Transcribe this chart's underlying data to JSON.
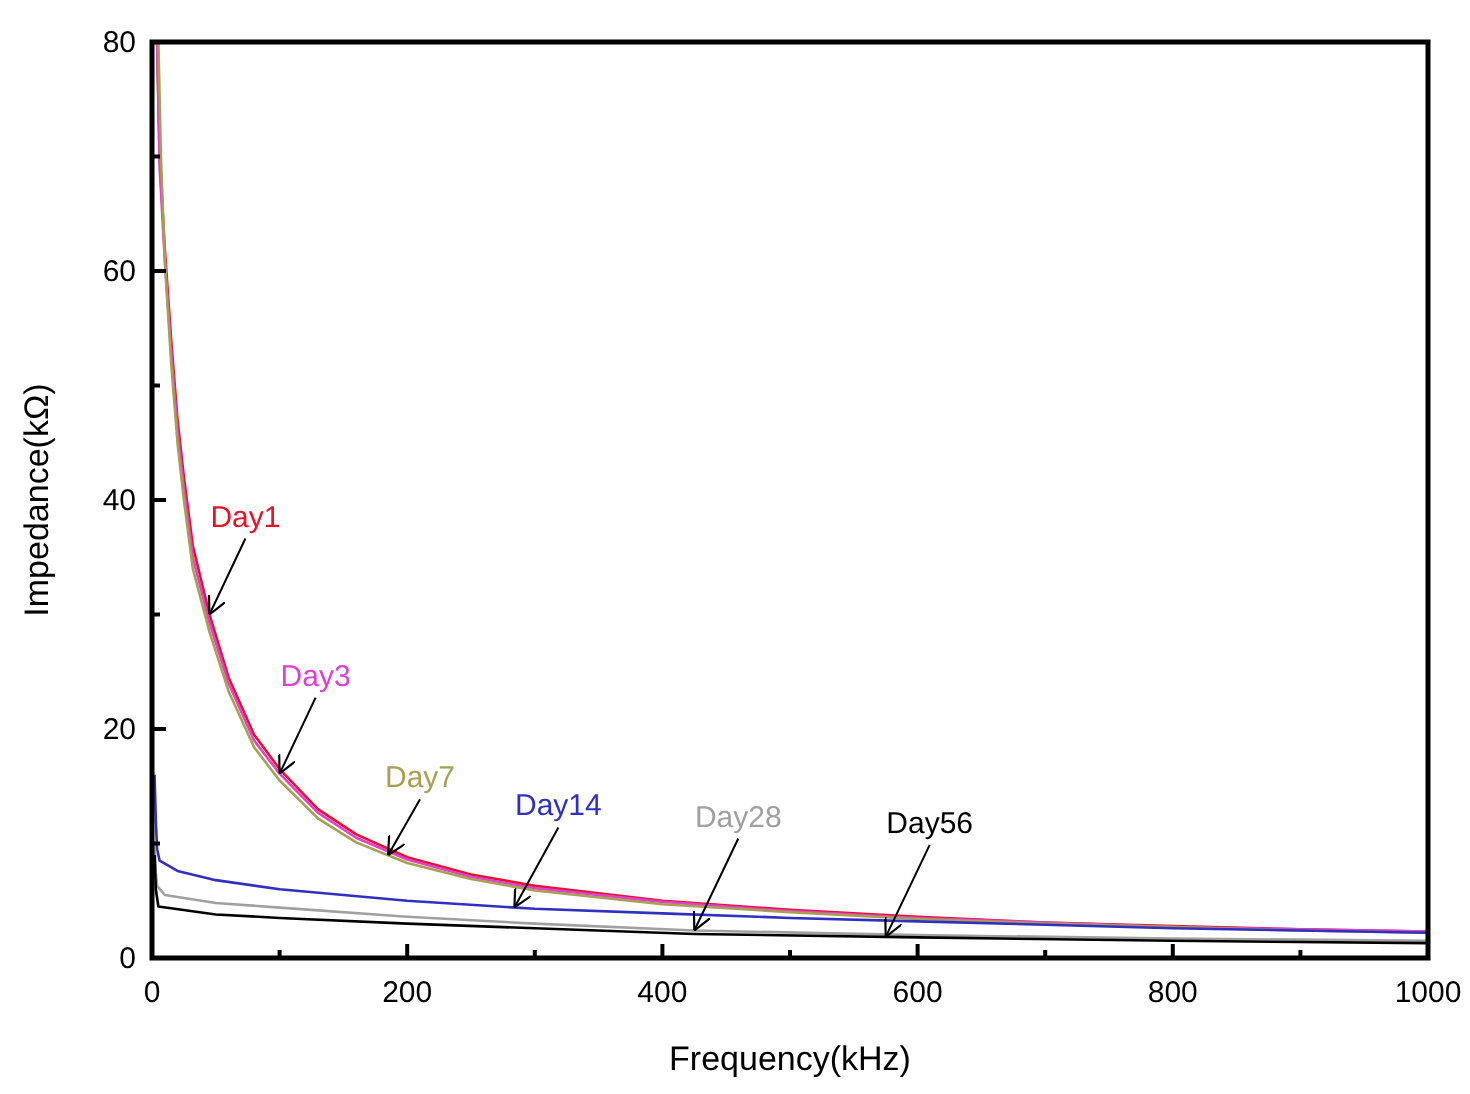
{
  "chart_data": {
    "type": "line",
    "xlabel": "Frequency(kHz)",
    "ylabel": "Impedance(kΩ)",
    "xlim": [
      0,
      1000
    ],
    "xticks": [
      0,
      {
        "value": 100,
        "label": null
      },
      200,
      {
        "value": 300,
        "label": null
      },
      400,
      {
        "value": 500,
        "label": null
      },
      600,
      {
        "value": 700,
        "label": null
      },
      800,
      {
        "value": 900,
        "label": null
      },
      1000
    ],
    "ylim": [
      0,
      80
    ],
    "yticks": [
      0,
      {
        "value": 10,
        "label": null
      },
      20,
      {
        "value": 30,
        "label": null
      },
      40,
      {
        "value": 50,
        "label": null
      },
      60,
      {
        "value": 70,
        "label": null
      },
      80
    ],
    "grid": false,
    "marker": "none",
    "line_style": "solid",
    "series": [
      {
        "name": "Day1",
        "color": "#e8102a",
        "x": [
          4,
          6,
          10,
          15,
          20,
          25,
          32,
          45,
          60,
          80,
          100,
          130,
          160,
          200,
          250,
          300,
          400,
          500,
          600,
          700,
          800,
          900,
          1000
        ],
        "values": [
          80,
          70,
          62,
          54,
          47,
          42,
          36,
          30,
          24.5,
          19.5,
          16.5,
          13,
          10.8,
          8.8,
          7.3,
          6.3,
          5,
          4.2,
          3.6,
          3.1,
          2.8,
          2.5,
          2.3
        ]
      },
      {
        "name": "Day3",
        "color": "#e040d0",
        "x": [
          4,
          6,
          10,
          15,
          20,
          25,
          32,
          45,
          60,
          80,
          100,
          130,
          160,
          200,
          250,
          300,
          400,
          500,
          600,
          700,
          800,
          900,
          1000
        ],
        "values": [
          80,
          69,
          61,
          53,
          46,
          41,
          35,
          29.3,
          24,
          19,
          16.1,
          12.7,
          10.5,
          8.6,
          7.1,
          6.1,
          4.9,
          4.1,
          3.5,
          3.1,
          2.7,
          2.5,
          2.3
        ]
      },
      {
        "name": "Day7",
        "color": "#a8a050",
        "x": [
          5,
          7,
          10,
          15,
          20,
          25,
          32,
          45,
          60,
          80,
          100,
          130,
          160,
          200,
          250,
          300,
          400,
          500,
          600,
          700,
          800,
          900,
          1000
        ],
        "values": [
          80,
          70,
          61,
          52,
          45,
          40,
          34,
          28.5,
          23.3,
          18.4,
          15.5,
          12.2,
          10.1,
          8.3,
          6.9,
          5.9,
          4.7,
          4,
          3.4,
          3,
          2.7,
          2.4,
          2.2
        ]
      },
      {
        "name": "Day14",
        "color": "#3030c0",
        "x": [
          2,
          3,
          4,
          6,
          20,
          50,
          100,
          200,
          300,
          400,
          500,
          600,
          700,
          800,
          900,
          1000
        ],
        "values": [
          16,
          12,
          9.5,
          8.5,
          7.6,
          6.8,
          6,
          5,
          4.3,
          3.9,
          3.5,
          3.2,
          2.9,
          2.6,
          2.4,
          2.2
        ]
      },
      {
        "name": "Day28",
        "color": "#a0a0a0",
        "x": [
          2,
          3,
          4,
          10,
          50,
          100,
          200,
          300,
          425,
          600,
          800,
          1000
        ],
        "values": [
          10,
          7.5,
          6.3,
          5.5,
          4.8,
          4.4,
          3.6,
          3,
          2.4,
          2,
          1.7,
          1.5
        ]
      },
      {
        "name": "Day56",
        "color": "#000000",
        "x": [
          2,
          3,
          5,
          50,
          100,
          200,
          300,
          425,
          600,
          800,
          1000
        ],
        "values": [
          9,
          6,
          4.5,
          3.8,
          3.5,
          3,
          2.6,
          2.1,
          1.8,
          1.5,
          1.3
        ]
      }
    ]
  }
}
